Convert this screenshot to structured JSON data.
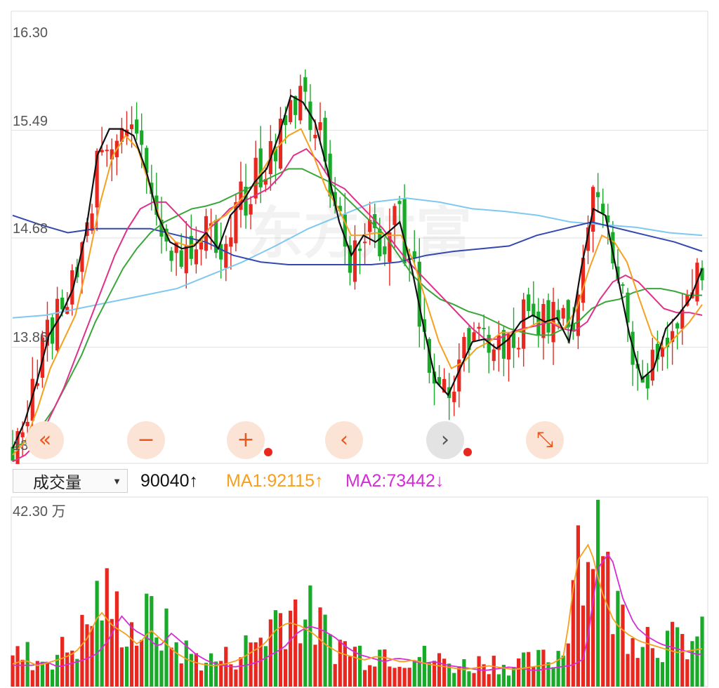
{
  "price_axis": [
    "16.30",
    "15.49",
    "14.68",
    "13.86",
    "13.05"
  ],
  "watermark": "东方财富",
  "controls": [
    {
      "name": "double-left-icon",
      "glyph": "«",
      "gray": false
    },
    {
      "name": "zoom-out-icon",
      "glyph": "−",
      "gray": false
    },
    {
      "name": "zoom-in-icon",
      "glyph": "+",
      "gray": false
    },
    {
      "name": "prev-icon",
      "glyph": "‹",
      "gray": false
    },
    {
      "name": "next-icon",
      "glyph": "›",
      "gray": true
    },
    {
      "name": "fullscreen-icon",
      "glyph": "⤡",
      "gray": false
    }
  ],
  "volume_header": {
    "indicator": "成交量",
    "current": "90040↑",
    "ma1": "MA1:92115↑",
    "ma2": "MA2:73442↓"
  },
  "volume_axis_max": "42.30 万",
  "colors": {
    "up": "#e8271f",
    "down": "#1aaa2a",
    "ma_black": "#111111",
    "ma_orange": "#f5a020",
    "ma_magenta": "#e0308a",
    "ma_green": "#3aa63a",
    "ma_navy": "#3348b0",
    "ma_lightblue": "#7fc8f0",
    "vol_ma1": "#f5a020",
    "vol_ma2": "#d52dd5"
  },
  "chart_data": {
    "type": "candlestick",
    "ylim": [
      13.05,
      16.3
    ],
    "y_ticks": [
      16.3,
      15.49,
      14.68,
      13.86,
      13.05
    ],
    "ma_series": [
      {
        "color_key": "ma_black",
        "values": [
          13.1,
          13.3,
          13.6,
          13.95,
          14.1,
          14.3,
          14.7,
          15.3,
          15.5,
          15.5,
          15.45,
          15.2,
          14.85,
          14.65,
          14.6,
          14.62,
          14.72,
          14.6,
          14.85,
          14.95,
          15.1,
          15.2,
          15.45,
          15.75,
          15.7,
          15.55,
          15.2,
          14.8,
          14.55,
          14.7,
          14.65,
          14.72,
          14.8,
          14.45,
          14.0,
          13.6,
          13.5,
          13.7,
          13.9,
          13.92,
          13.85,
          13.92,
          14.05,
          14.1,
          14.05,
          14.08,
          13.9,
          14.45,
          14.9,
          14.85,
          14.4,
          13.95,
          13.62,
          13.7,
          14.0,
          14.1,
          14.22,
          14.45
        ]
      },
      {
        "color_key": "ma_orange",
        "values": [
          13.05,
          13.15,
          13.4,
          13.7,
          13.9,
          14.1,
          14.5,
          14.95,
          15.3,
          15.45,
          15.35,
          15.05,
          14.75,
          14.65,
          14.62,
          14.65,
          14.8,
          14.85,
          14.95,
          15.05,
          15.2,
          15.35,
          15.45,
          15.5,
          15.3,
          15.05,
          14.9,
          14.7,
          14.7,
          14.72,
          14.7,
          14.7,
          14.5,
          14.2,
          13.9,
          13.7,
          13.75,
          13.85,
          13.9,
          13.97,
          13.97,
          14.0,
          14.05,
          14.05,
          14.0,
          14.15,
          14.45,
          14.7,
          14.65,
          14.5,
          14.22,
          13.95,
          13.85,
          13.95,
          14.05,
          14.18
        ]
      },
      {
        "color_key": "ma_magenta",
        "values": [
          13.0,
          13.05,
          13.15,
          13.35,
          13.55,
          13.8,
          14.05,
          14.3,
          14.55,
          14.75,
          14.9,
          14.95,
          14.95,
          14.85,
          14.75,
          14.72,
          14.8,
          14.9,
          14.95,
          15.0,
          15.05,
          15.15,
          15.3,
          15.35,
          15.25,
          15.1,
          15.05,
          14.95,
          14.85,
          14.75,
          14.62,
          14.5,
          14.4,
          14.3,
          14.2,
          14.1,
          14.0,
          13.92,
          13.92,
          13.97,
          14.0,
          14.02,
          14.05,
          14.0,
          13.98,
          14.05,
          14.22,
          14.35,
          14.4,
          14.35,
          14.25,
          14.15,
          14.12,
          14.12,
          14.1
        ]
      },
      {
        "color_key": "ma_green",
        "values": [
          13.1,
          13.15,
          13.25,
          13.4,
          13.6,
          13.8,
          14.05,
          14.25,
          14.45,
          14.6,
          14.72,
          14.8,
          14.85,
          14.9,
          14.92,
          14.95,
          15.0,
          15.05,
          15.1,
          15.15,
          15.2,
          15.2,
          15.15,
          15.1,
          15.0,
          14.9,
          14.8,
          14.7,
          14.55,
          14.4,
          14.3,
          14.22,
          14.18,
          14.13,
          14.1,
          14.05,
          14.0,
          13.97,
          13.95,
          13.95,
          14.0,
          14.05,
          14.15,
          14.2,
          14.22,
          14.27,
          14.3,
          14.3,
          14.28,
          14.25,
          14.25
        ]
      },
      {
        "color_key": "ma_navy",
        "values": [
          14.85,
          14.78,
          14.72,
          14.75,
          14.75,
          14.75,
          14.7,
          14.65,
          14.55,
          14.5,
          14.48,
          14.48,
          14.48,
          14.48,
          14.5,
          14.55,
          14.58,
          14.6,
          14.62,
          14.7,
          14.75,
          14.8,
          14.75,
          14.7,
          14.65,
          14.58
        ]
      },
      {
        "color_key": "ma_lightblue",
        "values": [
          14.08,
          14.1,
          14.15,
          14.2,
          14.25,
          14.3,
          14.4,
          14.5,
          14.62,
          14.75,
          14.85,
          14.95,
          14.98,
          14.95,
          14.9,
          14.88,
          14.85,
          14.8,
          14.78,
          14.76,
          14.72,
          14.7
        ]
      }
    ],
    "volume": {
      "ylim": [
        0,
        423000
      ],
      "max_label": "42.30 万",
      "current": 90040,
      "ma1": 92115,
      "ma2": 73442
    }
  }
}
